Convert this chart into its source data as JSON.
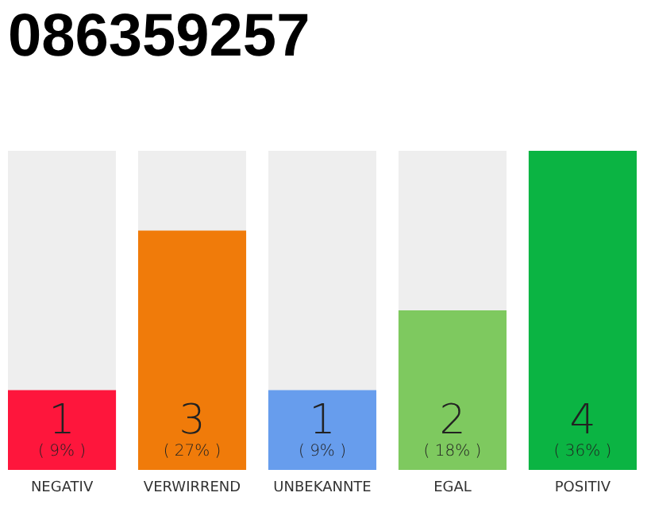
{
  "chart_data": {
    "type": "bar",
    "title": "086359257",
    "categories": [
      "NEGATIV",
      "VERWIRREND",
      "UNBEKANNTE",
      "EGAL",
      "POSITIV"
    ],
    "values": [
      1,
      3,
      1,
      2,
      4
    ],
    "colors": [
      "#fe163c",
      "#f07b0a",
      "#679ded",
      "#7ec95f",
      "#0bb443"
    ],
    "data_labels": true,
    "annotations": [
      "( 9% )",
      "( 27% )",
      "( 9% )",
      "( 18% )",
      "( 36% )"
    ],
    "tick_labels": "x"
  }
}
